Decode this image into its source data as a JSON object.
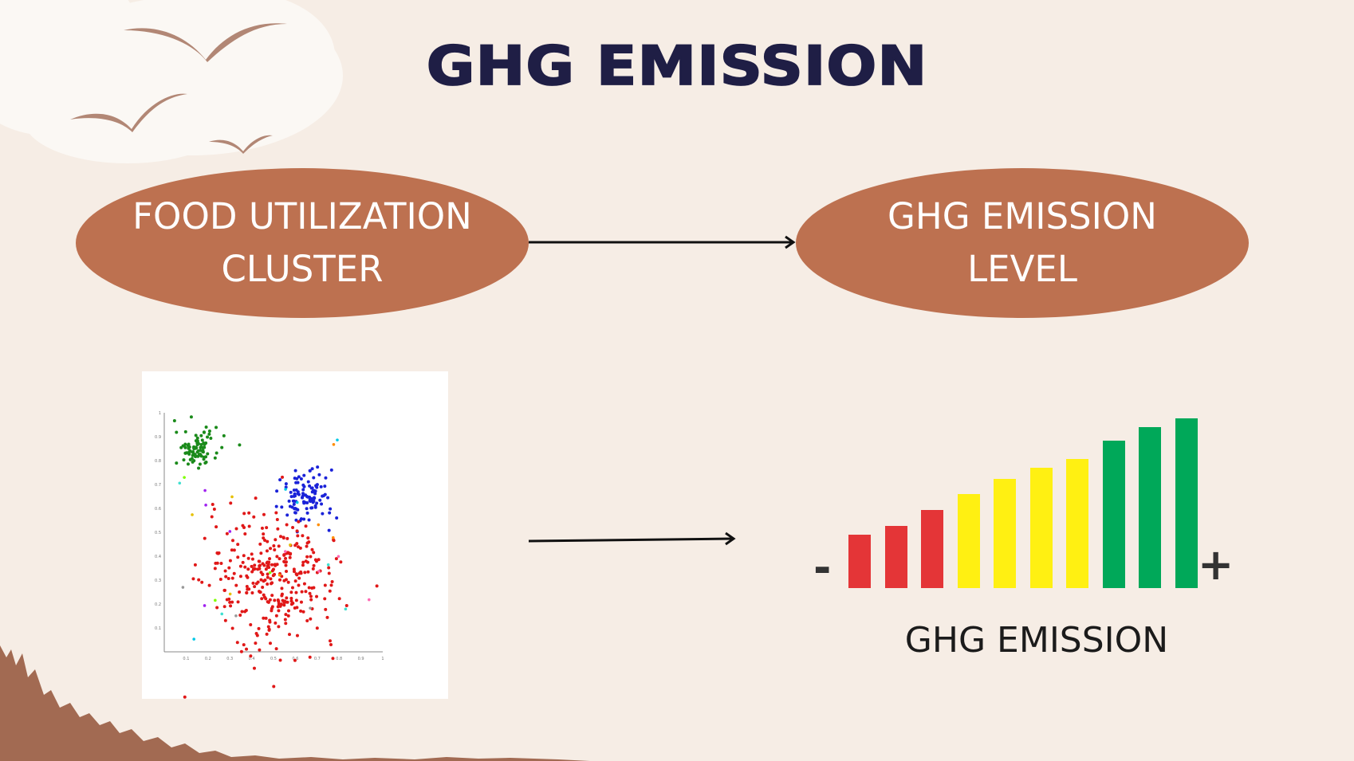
{
  "title": "GHG EMISSION",
  "flow": {
    "left_node": {
      "line1": "FOOD UTILIZATION",
      "line2": "CLUSTER"
    },
    "right_node": {
      "line1": "GHG EMISSION",
      "line2": "LEVEL"
    }
  },
  "meter": {
    "label": "GHG EMISSION",
    "minus": "-",
    "plus": "+",
    "levels": [
      0.24,
      0.28,
      0.35,
      0.42,
      0.49,
      0.54,
      0.58,
      0.66,
      0.72,
      0.76
    ],
    "level_colors": [
      "#e43537",
      "#e43537",
      "#e43537",
      "#fff012",
      "#fff012",
      "#fff012",
      "#fff012",
      "#00a859",
      "#00a859",
      "#00a859"
    ]
  },
  "colors": {
    "background": "#f6ede5",
    "pill": "#bd7150",
    "title": "#1f1e45",
    "ground": "#a26a52"
  },
  "chart_data": {
    "type": "scatter",
    "title": "",
    "xlabel": "",
    "ylabel": "",
    "xlim": [
      0,
      1
    ],
    "ylim": [
      0,
      1
    ],
    "x_ticks": [
      "0.1",
      "0.2",
      "0.3",
      "0.4",
      "0.5",
      "0.6",
      "0.7",
      "0.8",
      "0.9",
      "1"
    ],
    "y_ticks": [
      "0.1",
      "0.2",
      "0.3",
      "0.4",
      "0.5",
      "0.6",
      "0.7",
      "0.8",
      "0.9",
      "1"
    ],
    "clusters": [
      {
        "color": "#1a8a1a",
        "center": [
          0.15,
          0.85
        ],
        "spread": [
          0.05,
          0.04
        ],
        "count": 90
      },
      {
        "color": "#1a22d8",
        "center": [
          0.65,
          0.65
        ],
        "spread": [
          0.06,
          0.06
        ],
        "count": 110
      },
      {
        "color": "#e01818",
        "center": [
          0.5,
          0.3
        ],
        "spread": [
          0.15,
          0.14
        ],
        "count": 330
      }
    ]
  }
}
